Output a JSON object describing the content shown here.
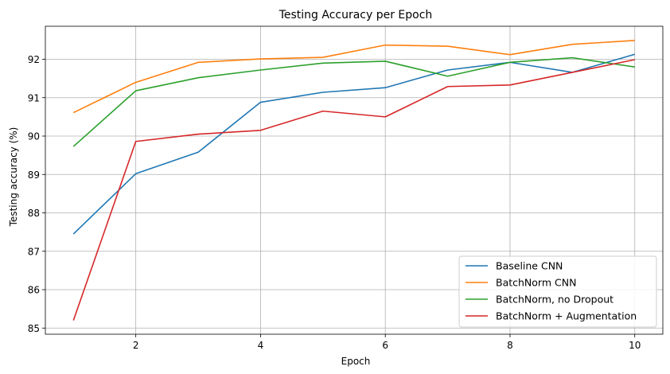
{
  "chart_data": {
    "type": "line",
    "title": "Testing Accuracy per Epoch",
    "xlabel": "Epoch",
    "ylabel": "Testing accuracy (%)",
    "x": [
      1,
      2,
      3,
      4,
      5,
      6,
      7,
      8,
      9,
      10
    ],
    "xlim": [
      0.55,
      10.45
    ],
    "ylim": [
      84.84,
      92.86
    ],
    "xticks": [
      2,
      4,
      6,
      8,
      10
    ],
    "yticks": [
      85,
      86,
      87,
      88,
      89,
      90,
      91,
      92
    ],
    "grid": true,
    "legend_position": "bottom-right",
    "series": [
      {
        "name": "Baseline CNN",
        "color": "#1f77b4",
        "values": [
          87.45,
          89.02,
          89.58,
          90.88,
          91.14,
          91.26,
          91.72,
          91.92,
          91.66,
          92.13
        ]
      },
      {
        "name": "BatchNorm CNN",
        "color": "#ff7f0e",
        "values": [
          90.61,
          91.4,
          91.92,
          92.01,
          92.05,
          92.37,
          92.34,
          92.12,
          92.39,
          92.49
        ]
      },
      {
        "name": "BatchNorm, no Dropout",
        "color": "#2ca02c",
        "values": [
          89.73,
          91.18,
          91.52,
          91.72,
          91.9,
          91.95,
          91.56,
          91.92,
          92.04,
          91.8
        ]
      },
      {
        "name": "BatchNorm + Augmentation",
        "color": "#d62728",
        "values": [
          85.2,
          89.86,
          90.05,
          90.15,
          90.65,
          90.5,
          91.29,
          91.33,
          91.66,
          91.99
        ]
      }
    ]
  }
}
